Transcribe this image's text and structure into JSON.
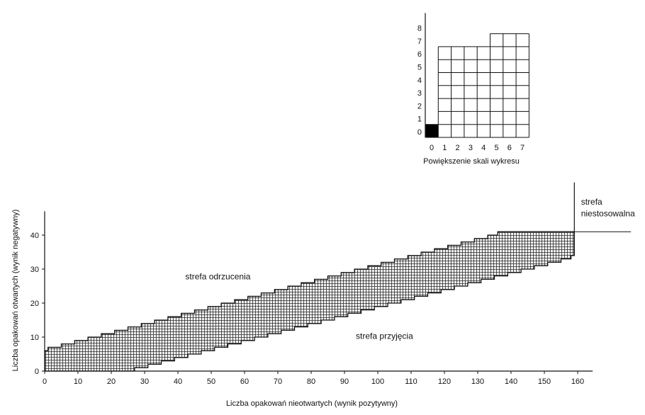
{
  "chart_data": [
    {
      "type": "area",
      "xlabel": "Liczba opakowań nieotwartych (wynik pozytywny)",
      "ylabel": "Liczba opakowań otwartych (wynik negatywny)",
      "xlim": [
        0,
        160
      ],
      "ylim": [
        0,
        47
      ],
      "xticks": [
        0,
        10,
        20,
        30,
        40,
        50,
        60,
        70,
        80,
        90,
        100,
        110,
        120,
        130,
        140,
        150,
        160
      ],
      "yticks": [
        0,
        10,
        20,
        30,
        40
      ],
      "grid": false,
      "upper_boundary": {
        "x": [
          0,
          1,
          5,
          9,
          13,
          17,
          21,
          25,
          29,
          33,
          37,
          41,
          45,
          49,
          53,
          57,
          61,
          65,
          69,
          73,
          77,
          81,
          85,
          89,
          93,
          97,
          101,
          105,
          109,
          113,
          117,
          121,
          125,
          129,
          133,
          136,
          159
        ],
        "y": [
          6,
          7,
          8,
          9,
          10,
          11,
          12,
          13,
          14,
          15,
          16,
          17,
          18,
          19,
          20,
          21,
          22,
          23,
          24,
          25,
          26,
          27,
          28,
          29,
          30,
          31,
          32,
          33,
          34,
          35,
          36,
          37,
          38,
          39,
          40,
          41,
          41
        ]
      },
      "lower_boundary": {
        "x": [
          0,
          27,
          31,
          35,
          39,
          43,
          47,
          51,
          55,
          59,
          63,
          67,
          71,
          75,
          79,
          83,
          87,
          91,
          95,
          99,
          103,
          107,
          111,
          115,
          119,
          123,
          127,
          131,
          135,
          139,
          143,
          147,
          151,
          155,
          158,
          159
        ],
        "y": [
          0,
          1,
          2,
          3,
          4,
          5,
          6,
          7,
          8,
          9,
          10,
          11,
          12,
          13,
          14,
          15,
          16,
          17,
          18,
          19,
          20,
          21,
          22,
          23,
          24,
          25,
          26,
          27,
          28,
          29,
          30,
          31,
          32,
          33,
          34,
          41
        ]
      },
      "unusable_line": {
        "x_start": 159,
        "x_end": 176,
        "y": 41
      },
      "annotations": [
        {
          "text": "strefa odrzucenia",
          "x": 52,
          "y": 27
        },
        {
          "text": "strefa przyjęcia",
          "x": 102,
          "y": 9.5
        },
        {
          "text": "strefa",
          "x": 161,
          "y": 49
        },
        {
          "text": "niestosowalna",
          "x": 161,
          "y": 45.5
        }
      ]
    },
    {
      "type": "area",
      "title": "",
      "xlabel": "Powiększenie skali wykresu",
      "xlim": [
        0,
        8
      ],
      "ylim": [
        0,
        9
      ],
      "xticks": [
        0,
        1,
        2,
        3,
        4,
        5,
        6,
        7
      ],
      "yticks": [
        0,
        1,
        2,
        3,
        4,
        5,
        6,
        7,
        8
      ],
      "grid": true,
      "column_tops": [
        1,
        7,
        7,
        7,
        7,
        8,
        8,
        8
      ],
      "filled_cell": {
        "x": 0,
        "y": 0
      }
    }
  ]
}
